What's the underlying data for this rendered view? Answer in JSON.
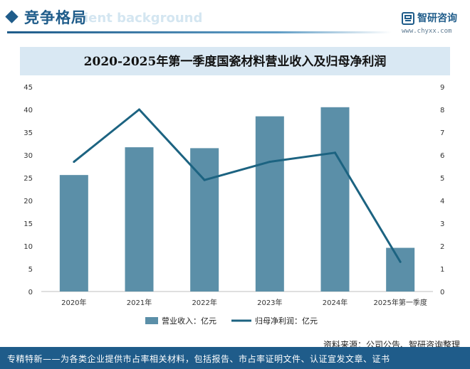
{
  "header": {
    "section_title": "竞争格局",
    "ghost_text": "ient background",
    "logo_name": "智研咨询",
    "logo_url": "www.chyxx.com",
    "logo_icon": "chyxx-logo-icon"
  },
  "chart_data": {
    "type": "bar-line",
    "title": "2020-2025年第一季度国瓷材料营业收入及归母净利润",
    "categories": [
      "2020年",
      "2021年",
      "2022年",
      "2023年",
      "2024年",
      "2025年第一季度"
    ],
    "series": [
      {
        "name": "营业收入：亿元",
        "type": "bar",
        "axis": "left",
        "color": "#5b8fa8",
        "values": [
          25.6,
          31.7,
          31.5,
          38.5,
          40.5,
          9.6
        ]
      },
      {
        "name": "归母净利润：亿元",
        "type": "line",
        "axis": "right",
        "color": "#1c6381",
        "values": [
          5.7,
          8.0,
          4.9,
          5.7,
          6.1,
          1.3
        ]
      }
    ],
    "y_left": {
      "min": 0,
      "max": 45,
      "ticks": [
        0,
        5,
        10,
        15,
        20,
        25,
        30,
        35,
        40,
        45
      ]
    },
    "y_right": {
      "min": 0,
      "max": 9,
      "ticks": [
        0,
        1,
        2,
        3,
        4,
        5,
        6,
        7,
        8,
        9
      ]
    },
    "grid": false,
    "legend_position": "bottom"
  },
  "source": "资料来源：公司公告、智研咨询整理",
  "footer": "专精特新——为各类企业提供市占率相关材料，包括报告、市占率证明文件、认证宣发文章、证书"
}
